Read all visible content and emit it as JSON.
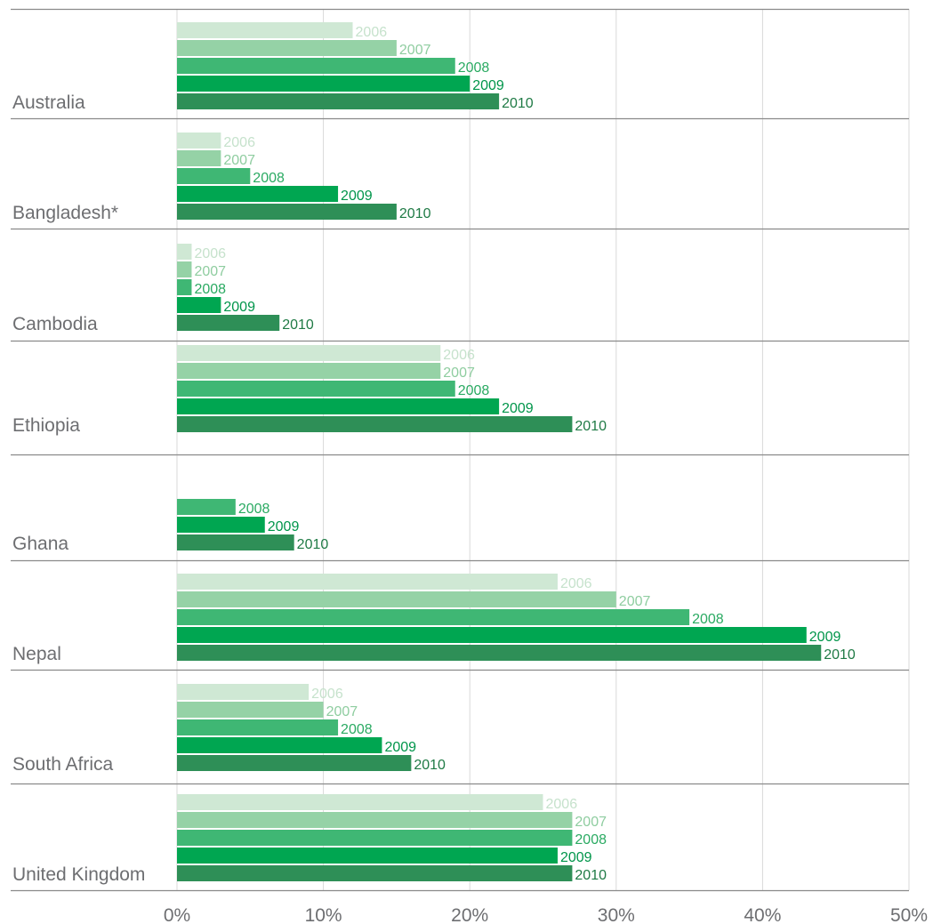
{
  "chart_data": {
    "type": "bar",
    "orientation": "horizontal",
    "x_ticks": [
      "0%",
      "10%",
      "20%",
      "30%",
      "40%",
      "50%"
    ],
    "xlim": [
      0,
      50
    ],
    "x_unit": "%",
    "grid": "vertical",
    "series": [
      {
        "name": "2006",
        "color": "#cfe8d4"
      },
      {
        "name": "2007",
        "color": "#95d2a6"
      },
      {
        "name": "2008",
        "color": "#3fb774"
      },
      {
        "name": "2009",
        "color": "#00a651"
      },
      {
        "name": "2010",
        "color": "#2e8f57"
      }
    ],
    "label_colors": {
      "2006": "#c6e2cc",
      "2007": "#8fcda0",
      "2008": "#2aaa62",
      "2009": "#00954a",
      "2010": "#1f7a45"
    },
    "categories": [
      {
        "name": "Australia",
        "values": {
          "2006": 12,
          "2007": 15,
          "2008": 19,
          "2009": 20,
          "2010": 22
        }
      },
      {
        "name": "Bangladesh*",
        "values": {
          "2006": 3,
          "2007": 3,
          "2008": 5,
          "2009": 11,
          "2010": 15
        }
      },
      {
        "name": "Cambodia",
        "values": {
          "2006": 1,
          "2007": 1,
          "2008": 1,
          "2009": 3,
          "2010": 7
        }
      },
      {
        "name": "Ethiopia",
        "values": {
          "2006": 18,
          "2007": 18,
          "2008": 19,
          "2009": 22,
          "2010": 27
        }
      },
      {
        "name": "Ghana",
        "values": {
          "2008": 4,
          "2009": 6,
          "2010": 8
        }
      },
      {
        "name": "Nepal",
        "values": {
          "2006": 26,
          "2007": 30,
          "2008": 35,
          "2009": 43,
          "2010": 44
        }
      },
      {
        "name": "South Africa",
        "values": {
          "2006": 9,
          "2007": 10,
          "2008": 11,
          "2009": 14,
          "2010": 16
        }
      },
      {
        "name": "United Kingdom",
        "values": {
          "2006": 25,
          "2007": 27,
          "2008": 27,
          "2009": 26,
          "2010": 27
        }
      }
    ]
  }
}
